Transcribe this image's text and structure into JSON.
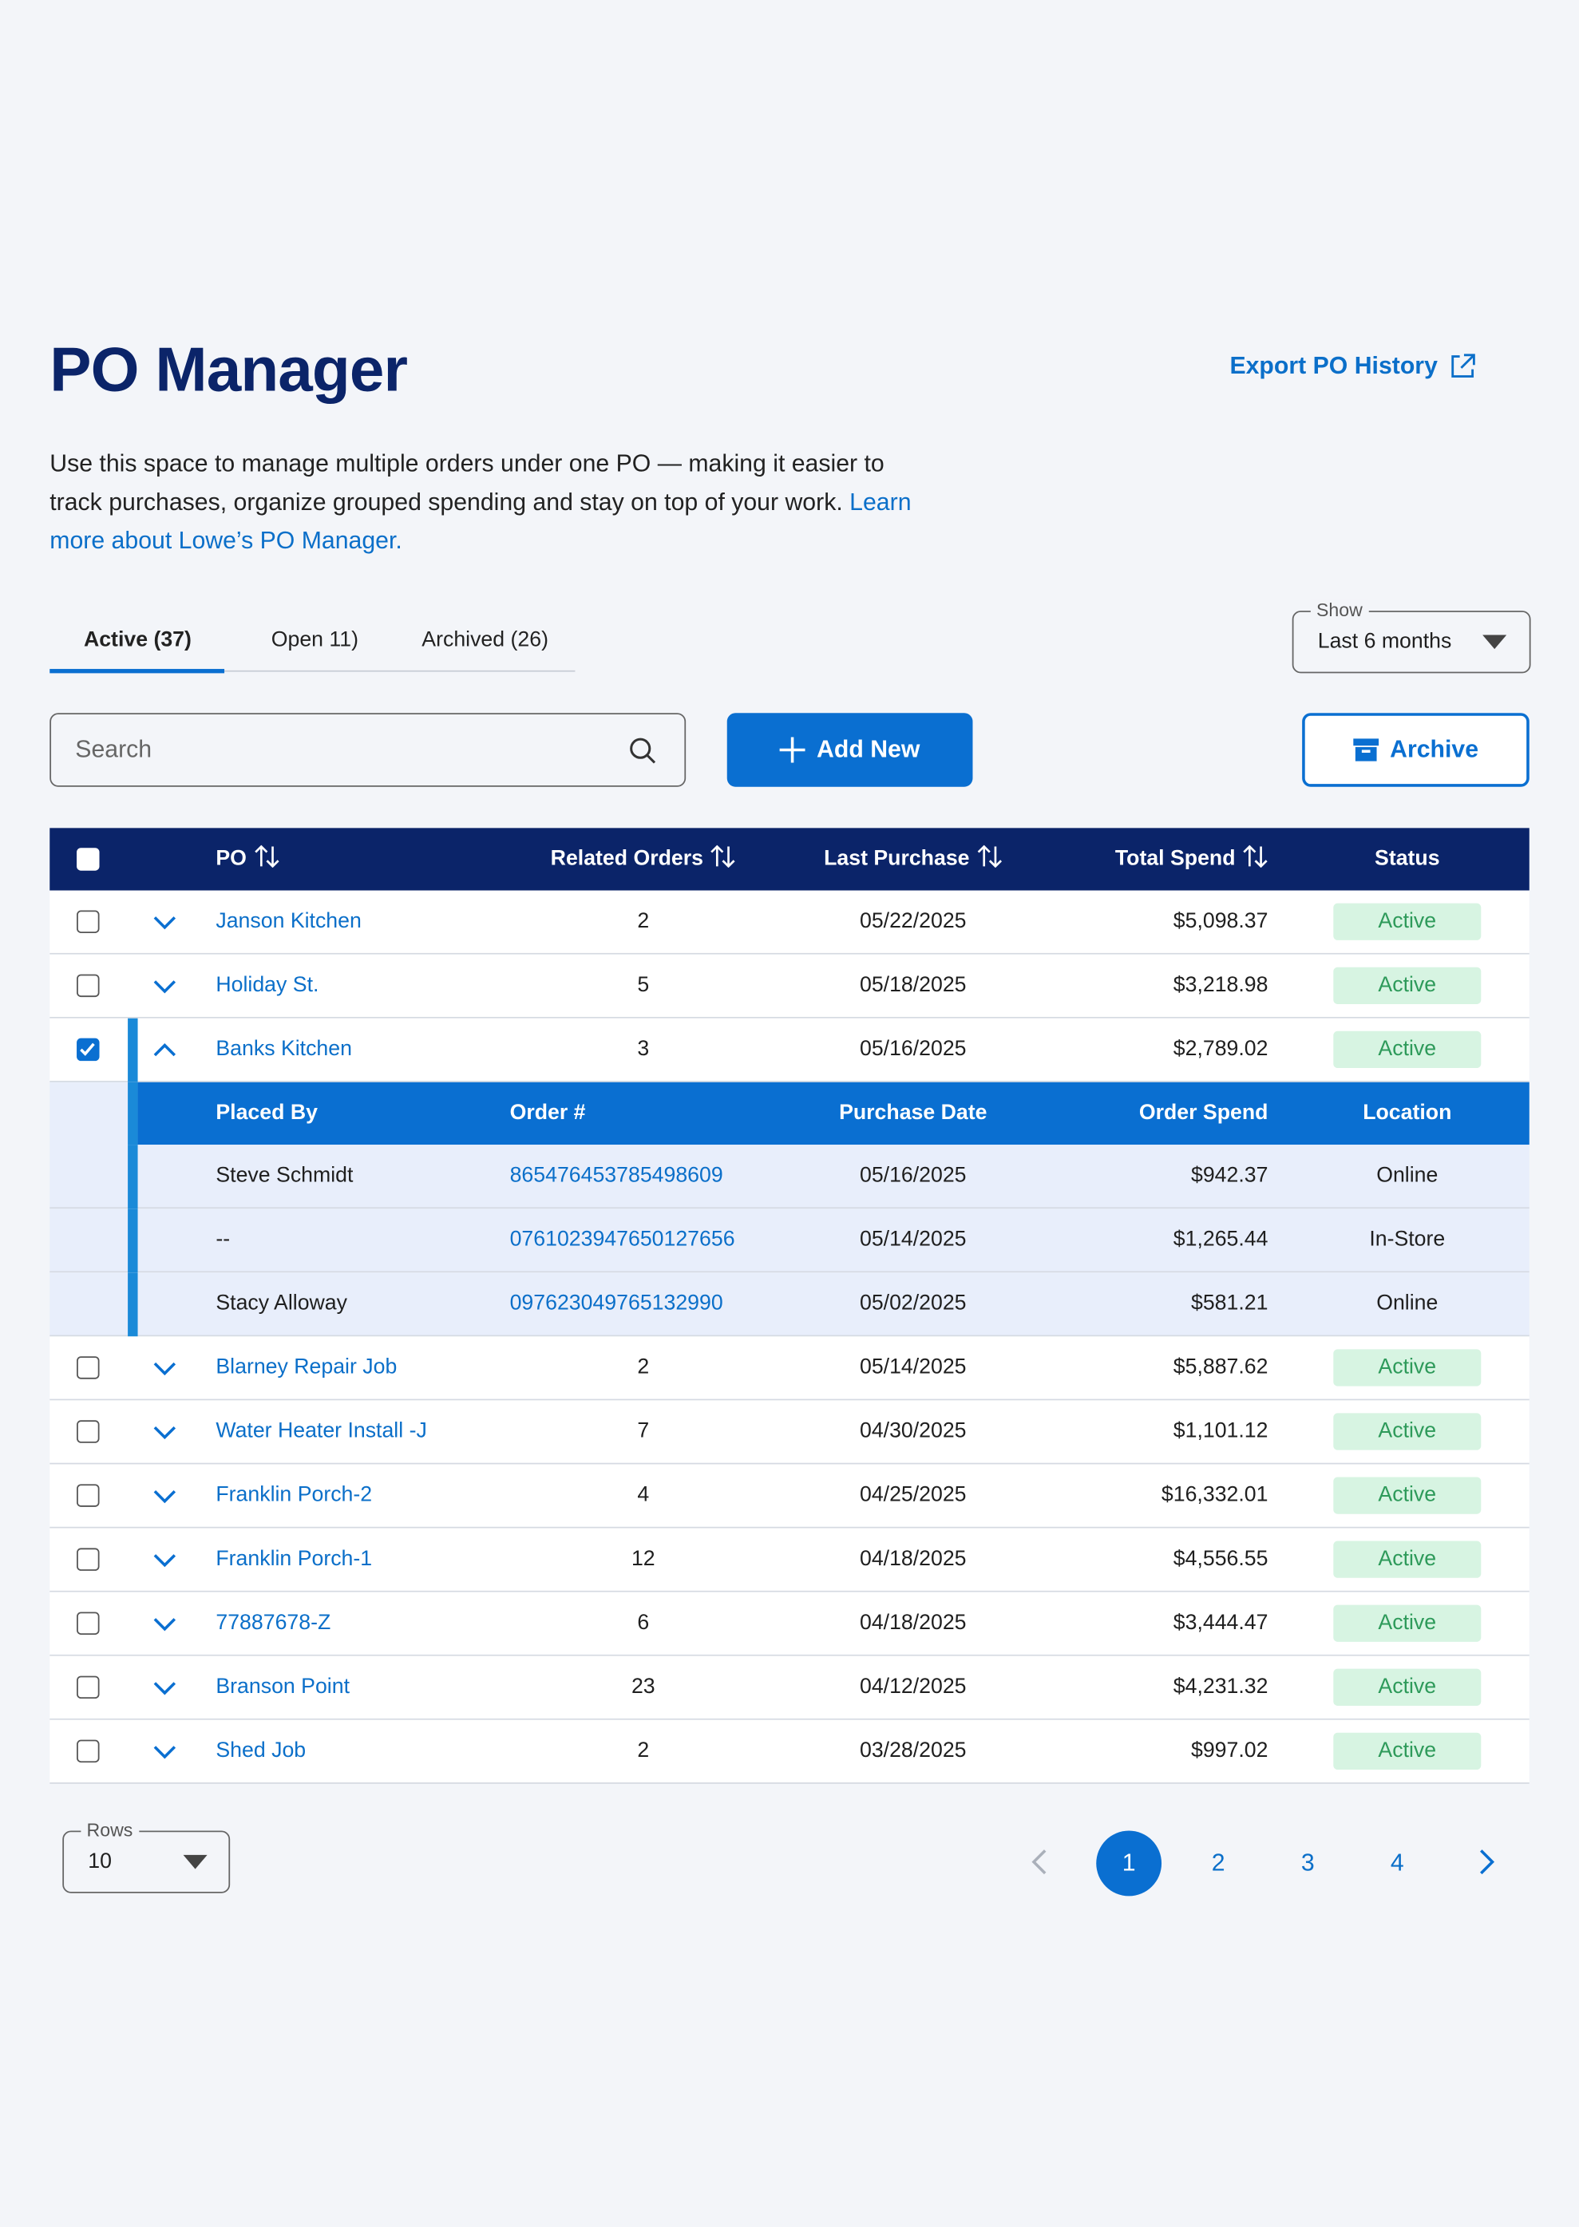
{
  "header": {
    "title": "PO Manager",
    "description": "Use this space to manage multiple orders under one PO — making it easier to track purchases, organize grouped spending and stay on top of your work.",
    "link": "Learn more about Lowe’s PO Manager.",
    "export": "Export PO History"
  },
  "tabs": [
    "Active (37)",
    "Open 11)",
    "Archived (26)"
  ],
  "filter": {
    "label": "Show",
    "value": "Last 6 months"
  },
  "search": {
    "placeholder": "Search"
  },
  "buttons": {
    "add": "Add New",
    "archive": "Archive"
  },
  "table": {
    "columns": [
      "PO",
      "Related Orders",
      "Last Purchase",
      "Total Spend",
      "Status"
    ],
    "order_columns": [
      "Placed By",
      "Order #",
      "Purchase Date",
      "Order Spend",
      "Location"
    ],
    "rows": [
      {
        "po": "Janson Kitchen",
        "related": 2,
        "last": "05/22/2025",
        "total": "$5,098.37",
        "status": "Active",
        "selected": false
      },
      {
        "po": "Holiday St.",
        "related": 5,
        "last": "05/18/2025",
        "total": "$3,218.98",
        "status": "Active",
        "selected": false
      },
      {
        "po": "Banks Kitchen",
        "related": 3,
        "last": "05/16/2025",
        "total": "$2,789.02",
        "status": "Active",
        "selected": true,
        "orders": [
          [
            "Steve Schmidt",
            "865476453785498609",
            "05/16/2025",
            "$942.37",
            "Online"
          ],
          [
            "--",
            "0761023947650127656",
            "05/14/2025",
            "$1,265.44",
            "In-Store"
          ],
          [
            "Stacy Alloway",
            "097623049765132990",
            "05/02/2025",
            "$581.21",
            "Online"
          ]
        ]
      },
      {
        "po": "Blarney Repair Job",
        "related": 2,
        "last": "05/14/2025",
        "total": "$5,887.62",
        "status": "Active",
        "selected": false
      },
      {
        "po": "Water Heater Install -J",
        "related": 7,
        "last": "04/30/2025",
        "total": "$1,101.12",
        "status": "Active",
        "selected": false
      },
      {
        "po": "Franklin Porch-2",
        "related": 4,
        "last": "04/25/2025",
        "total": "$16,332.01",
        "status": "Active",
        "selected": false
      },
      {
        "po": "Franklin Porch-1",
        "related": 12,
        "last": "04/18/2025",
        "total": "$4,556.55",
        "status": "Active",
        "selected": false
      },
      {
        "po": "77887678-Z",
        "related": 6,
        "last": "04/18/2025",
        "total": "$3,444.47",
        "status": "Active",
        "selected": false
      },
      {
        "po": "Branson Point",
        "related": 23,
        "last": "04/12/2025",
        "total": "$4,231.32",
        "status": "Active",
        "selected": false
      },
      {
        "po": "Shed Job",
        "related": 2,
        "last": "03/28/2025",
        "total": "$997.02",
        "status": "Active",
        "selected": false
      }
    ]
  },
  "pagination": {
    "rows_label": "Rows",
    "rows_value": "10",
    "pages": [
      "1",
      "2",
      "3",
      "4"
    ]
  }
}
